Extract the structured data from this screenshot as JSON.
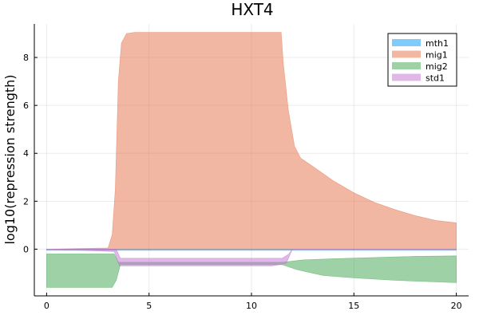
{
  "chart_data": {
    "type": "area",
    "title": "HXT4",
    "xlabel": "",
    "ylabel": "log10(repression strength)",
    "xlim": [
      -0.6,
      20.6
    ],
    "ylim": [
      -1.95,
      9.4
    ],
    "xticks": [
      0,
      5,
      10,
      15,
      20
    ],
    "yticks": [
      0,
      2,
      4,
      6,
      8
    ],
    "grid": true,
    "legend_position": "top-right",
    "series": [
      {
        "name": "mth1",
        "color": "#009AFA",
        "points": [
          [
            0,
            -0.05
          ],
          [
            20,
            -0.05
          ]
        ],
        "baseline": [
          [
            0,
            0
          ],
          [
            20,
            0
          ]
        ]
      },
      {
        "name": "mig1",
        "color": "#E36F47",
        "points": [
          [
            0,
            0
          ],
          [
            3.0,
            0.05
          ],
          [
            3.2,
            0.6
          ],
          [
            3.35,
            2.5
          ],
          [
            3.5,
            7.0
          ],
          [
            3.65,
            8.6
          ],
          [
            3.9,
            9.0
          ],
          [
            4.3,
            9.05
          ],
          [
            11.45,
            9.05
          ],
          [
            11.55,
            7.8
          ],
          [
            11.8,
            5.8
          ],
          [
            12.1,
            4.3
          ],
          [
            12.4,
            3.8
          ],
          [
            13,
            3.45
          ],
          [
            14,
            2.85
          ],
          [
            15,
            2.35
          ],
          [
            16,
            1.95
          ],
          [
            17,
            1.65
          ],
          [
            18,
            1.4
          ],
          [
            19,
            1.2
          ],
          [
            20,
            1.1
          ]
        ],
        "baseline": [
          [
            0,
            0
          ],
          [
            20,
            0
          ]
        ]
      },
      {
        "name": "mig2",
        "color": "#3DA44D",
        "points": [
          [
            0,
            -0.2
          ],
          [
            3.3,
            -0.2
          ],
          [
            3.5,
            -0.55
          ],
          [
            11.5,
            -0.55
          ],
          [
            12.5,
            -0.45
          ],
          [
            14,
            -0.4
          ],
          [
            16,
            -0.35
          ],
          [
            18,
            -0.3
          ],
          [
            20,
            -0.28
          ]
        ],
        "baseline": [
          [
            0,
            -1.6
          ],
          [
            3.2,
            -1.6
          ],
          [
            3.4,
            -1.3
          ],
          [
            3.6,
            -0.65
          ],
          [
            11.5,
            -0.65
          ],
          [
            12.2,
            -0.85
          ],
          [
            13.5,
            -1.1
          ],
          [
            15,
            -1.2
          ],
          [
            17,
            -1.3
          ],
          [
            20,
            -1.4
          ]
        ]
      },
      {
        "name": "std1",
        "color": "#C271D2",
        "points": [
          [
            0,
            0
          ],
          [
            3.4,
            0
          ],
          [
            3.6,
            -0.38
          ],
          [
            11.5,
            -0.38
          ],
          [
            11.8,
            -0.22
          ],
          [
            12.0,
            0
          ],
          [
            20,
            0
          ]
        ],
        "baseline": [
          [
            0,
            0
          ],
          [
            3.3,
            -0.1
          ],
          [
            3.55,
            -0.7
          ],
          [
            11.0,
            -0.7
          ],
          [
            11.7,
            -0.6
          ],
          [
            12.0,
            0
          ],
          [
            20,
            0
          ]
        ]
      }
    ]
  }
}
